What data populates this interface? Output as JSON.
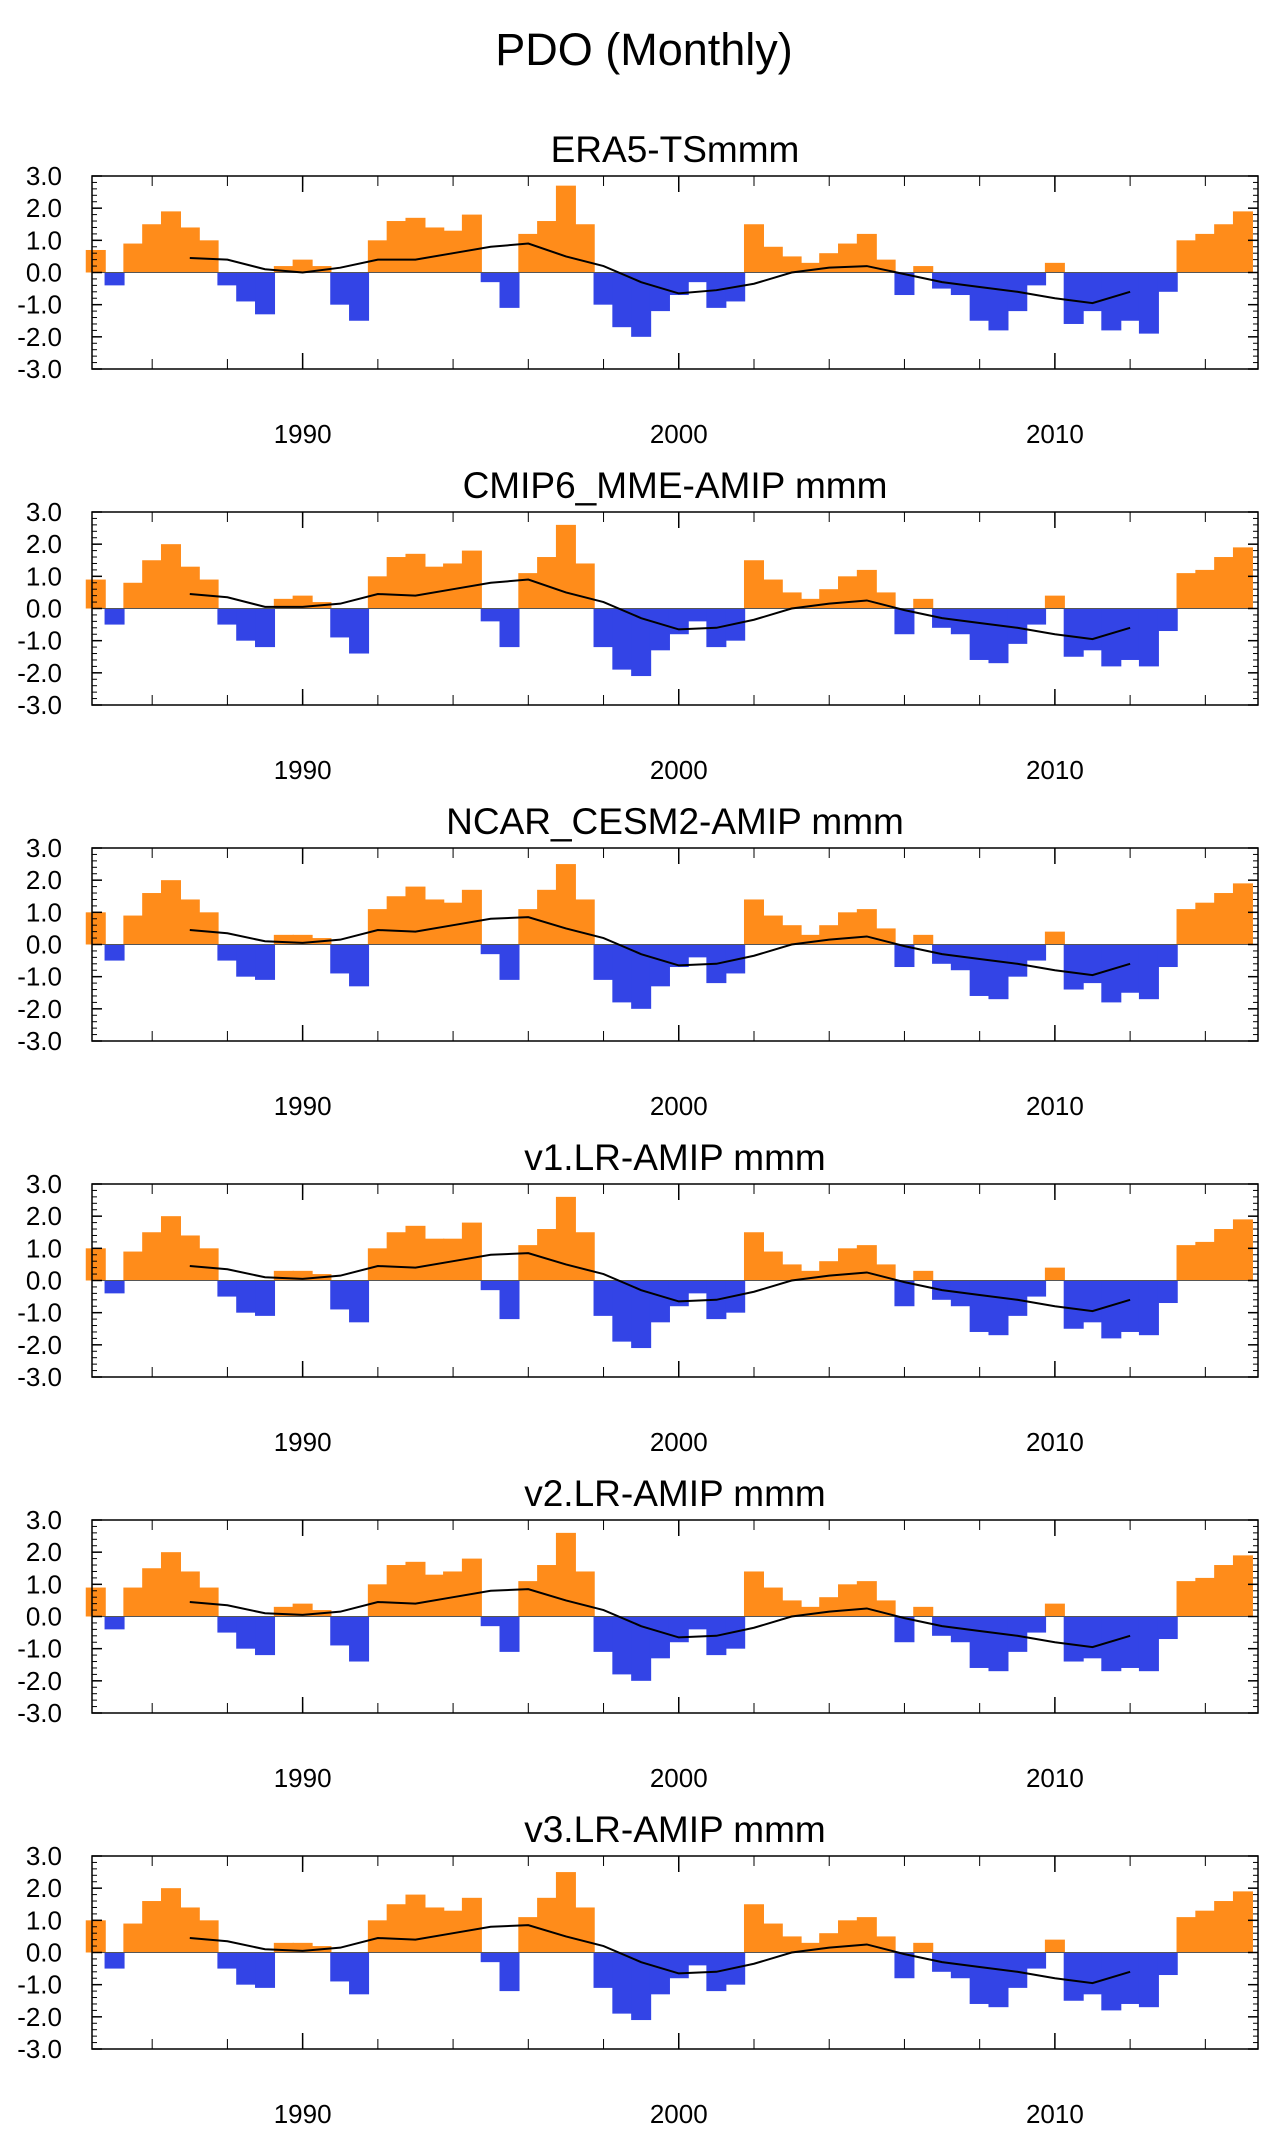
{
  "title": "PDO (Monthly)",
  "colors": {
    "positive": "#ff8c1a",
    "negative": "#3344e6",
    "smooth_line": "#000000",
    "frame": "#000000"
  },
  "chart_data": [
    {
      "type": "area",
      "title": "ERA5-TSmmm",
      "x_range": [
        1984.4,
        2015.4
      ],
      "ylim": [
        -3.0,
        3.0
      ],
      "y_ticks": [
        "3.0",
        "2.0",
        "1.0",
        "0.0",
        "-1.0",
        "-2.0",
        "-3.0"
      ],
      "x_ticks": [
        "1990",
        "2000",
        "2010"
      ],
      "grid": false,
      "x": [
        1984.5,
        1985.0,
        1985.5,
        1986.0,
        1986.5,
        1987.0,
        1987.5,
        1988.0,
        1988.5,
        1989.0,
        1989.5,
        1990.0,
        1990.5,
        1991.0,
        1991.5,
        1992.0,
        1992.5,
        1993.0,
        1993.5,
        1994.0,
        1994.5,
        1995.0,
        1995.5,
        1996.0,
        1996.5,
        1997.0,
        1997.5,
        1998.0,
        1998.5,
        1999.0,
        1999.5,
        2000.0,
        2000.5,
        2001.0,
        2001.5,
        2002.0,
        2002.5,
        2003.0,
        2003.5,
        2004.0,
        2004.5,
        2005.0,
        2005.5,
        2006.0,
        2006.5,
        2007.0,
        2007.5,
        2008.0,
        2008.5,
        2009.0,
        2009.5,
        2010.0,
        2010.5,
        2011.0,
        2011.5,
        2012.0,
        2012.5,
        2013.0,
        2013.5,
        2014.0,
        2014.5,
        2015.0
      ],
      "values": [
        0.7,
        -0.4,
        0.9,
        1.5,
        1.9,
        1.4,
        1.0,
        -0.4,
        -0.9,
        -1.3,
        0.2,
        0.4,
        0.2,
        -1.0,
        -1.5,
        1.0,
        1.6,
        1.7,
        1.4,
        1.3,
        1.8,
        -0.3,
        -1.1,
        1.2,
        1.6,
        2.7,
        1.5,
        -1.0,
        -1.7,
        -2.0,
        -1.2,
        -0.7,
        -0.3,
        -1.1,
        -0.9,
        1.5,
        0.8,
        0.5,
        0.3,
        0.6,
        0.9,
        1.2,
        0.4,
        -0.7,
        0.2,
        -0.5,
        -0.7,
        -1.5,
        -1.8,
        -1.2,
        -0.4,
        0.3,
        -1.6,
        -1.2,
        -1.8,
        -1.5,
        -1.9,
        -0.6,
        1.0,
        1.2,
        1.5,
        1.9
      ],
      "smooth_x": [
        1987.0,
        1988.0,
        1989.0,
        1990.0,
        1991.0,
        1992.0,
        1993.0,
        1994.0,
        1995.0,
        1996.0,
        1997.0,
        1998.0,
        1999.0,
        2000.0,
        2001.0,
        2002.0,
        2003.0,
        2004.0,
        2005.0,
        2006.0,
        2007.0,
        2008.0,
        2009.0,
        2010.0,
        2011.0,
        2012.0
      ],
      "smooth": [
        0.45,
        0.4,
        0.1,
        0.0,
        0.15,
        0.4,
        0.4,
        0.6,
        0.8,
        0.9,
        0.5,
        0.2,
        -0.3,
        -0.65,
        -0.55,
        -0.35,
        0.0,
        0.15,
        0.2,
        -0.05,
        -0.3,
        -0.45,
        -0.6,
        -0.8,
        -0.95,
        -0.6
      ]
    },
    {
      "type": "area",
      "title": "CMIP6_MME-AMIP  mmm",
      "x_range": [
        1984.4,
        2015.4
      ],
      "ylim": [
        -3.0,
        3.0
      ],
      "y_ticks": [
        "3.0",
        "2.0",
        "1.0",
        "0.0",
        "-1.0",
        "-2.0",
        "-3.0"
      ],
      "x_ticks": [
        "1990",
        "2000",
        "2010"
      ],
      "grid": false,
      "x": [
        1984.5,
        1985.0,
        1985.5,
        1986.0,
        1986.5,
        1987.0,
        1987.5,
        1988.0,
        1988.5,
        1989.0,
        1989.5,
        1990.0,
        1990.5,
        1991.0,
        1991.5,
        1992.0,
        1992.5,
        1993.0,
        1993.5,
        1994.0,
        1994.5,
        1995.0,
        1995.5,
        1996.0,
        1996.5,
        1997.0,
        1997.5,
        1998.0,
        1998.5,
        1999.0,
        1999.5,
        2000.0,
        2000.5,
        2001.0,
        2001.5,
        2002.0,
        2002.5,
        2003.0,
        2003.5,
        2004.0,
        2004.5,
        2005.0,
        2005.5,
        2006.0,
        2006.5,
        2007.0,
        2007.5,
        2008.0,
        2008.5,
        2009.0,
        2009.5,
        2010.0,
        2010.5,
        2011.0,
        2011.5,
        2012.0,
        2012.5,
        2013.0,
        2013.5,
        2014.0,
        2014.5,
        2015.0
      ],
      "values": [
        0.9,
        -0.5,
        0.8,
        1.5,
        2.0,
        1.3,
        0.9,
        -0.5,
        -1.0,
        -1.2,
        0.3,
        0.4,
        0.2,
        -0.9,
        -1.4,
        1.0,
        1.6,
        1.7,
        1.3,
        1.4,
        1.8,
        -0.4,
        -1.2,
        1.1,
        1.6,
        2.6,
        1.4,
        -1.2,
        -1.9,
        -2.1,
        -1.3,
        -0.8,
        -0.4,
        -1.2,
        -1.0,
        1.5,
        0.9,
        0.5,
        0.3,
        0.6,
        1.0,
        1.2,
        0.5,
        -0.8,
        0.3,
        -0.6,
        -0.8,
        -1.6,
        -1.7,
        -1.1,
        -0.5,
        0.4,
        -1.5,
        -1.3,
        -1.8,
        -1.6,
        -1.8,
        -0.7,
        1.1,
        1.2,
        1.6,
        1.9
      ],
      "smooth_x": [
        1987.0,
        1988.0,
        1989.0,
        1990.0,
        1991.0,
        1992.0,
        1993.0,
        1994.0,
        1995.0,
        1996.0,
        1997.0,
        1998.0,
        1999.0,
        2000.0,
        2001.0,
        2002.0,
        2003.0,
        2004.0,
        2005.0,
        2006.0,
        2007.0,
        2008.0,
        2009.0,
        2010.0,
        2011.0,
        2012.0
      ],
      "smooth": [
        0.45,
        0.35,
        0.05,
        0.05,
        0.15,
        0.45,
        0.4,
        0.6,
        0.8,
        0.9,
        0.5,
        0.2,
        -0.3,
        -0.65,
        -0.6,
        -0.35,
        0.0,
        0.15,
        0.25,
        -0.05,
        -0.3,
        -0.45,
        -0.6,
        -0.8,
        -0.95,
        -0.6
      ]
    },
    {
      "type": "area",
      "title": "NCAR_CESM2-AMIP  mmm",
      "x_range": [
        1984.4,
        2015.4
      ],
      "ylim": [
        -3.0,
        3.0
      ],
      "y_ticks": [
        "3.0",
        "2.0",
        "1.0",
        "0.0",
        "-1.0",
        "-2.0",
        "-3.0"
      ],
      "x_ticks": [
        "1990",
        "2000",
        "2010"
      ],
      "grid": false,
      "x": [
        1984.5,
        1985.0,
        1985.5,
        1986.0,
        1986.5,
        1987.0,
        1987.5,
        1988.0,
        1988.5,
        1989.0,
        1989.5,
        1990.0,
        1990.5,
        1991.0,
        1991.5,
        1992.0,
        1992.5,
        1993.0,
        1993.5,
        1994.0,
        1994.5,
        1995.0,
        1995.5,
        1996.0,
        1996.5,
        1997.0,
        1997.5,
        1998.0,
        1998.5,
        1999.0,
        1999.5,
        2000.0,
        2000.5,
        2001.0,
        2001.5,
        2002.0,
        2002.5,
        2003.0,
        2003.5,
        2004.0,
        2004.5,
        2005.0,
        2005.5,
        2006.0,
        2006.5,
        2007.0,
        2007.5,
        2008.0,
        2008.5,
        2009.0,
        2009.5,
        2010.0,
        2010.5,
        2011.0,
        2011.5,
        2012.0,
        2012.5,
        2013.0,
        2013.5,
        2014.0,
        2014.5,
        2015.0
      ],
      "values": [
        1.0,
        -0.5,
        0.9,
        1.6,
        2.0,
        1.4,
        1.0,
        -0.5,
        -1.0,
        -1.1,
        0.3,
        0.3,
        0.2,
        -0.9,
        -1.3,
        1.1,
        1.5,
        1.8,
        1.4,
        1.3,
        1.7,
        -0.3,
        -1.1,
        1.1,
        1.7,
        2.5,
        1.4,
        -1.1,
        -1.8,
        -2.0,
        -1.3,
        -0.7,
        -0.4,
        -1.2,
        -0.9,
        1.4,
        0.9,
        0.6,
        0.3,
        0.6,
        1.0,
        1.1,
        0.5,
        -0.7,
        0.3,
        -0.6,
        -0.8,
        -1.6,
        -1.7,
        -1.0,
        -0.5,
        0.4,
        -1.4,
        -1.2,
        -1.8,
        -1.5,
        -1.7,
        -0.7,
        1.1,
        1.3,
        1.6,
        1.9
      ],
      "smooth_x": [
        1987.0,
        1988.0,
        1989.0,
        1990.0,
        1991.0,
        1992.0,
        1993.0,
        1994.0,
        1995.0,
        1996.0,
        1997.0,
        1998.0,
        1999.0,
        2000.0,
        2001.0,
        2002.0,
        2003.0,
        2004.0,
        2005.0,
        2006.0,
        2007.0,
        2008.0,
        2009.0,
        2010.0,
        2011.0,
        2012.0
      ],
      "smooth": [
        0.45,
        0.35,
        0.1,
        0.05,
        0.15,
        0.45,
        0.4,
        0.6,
        0.8,
        0.85,
        0.5,
        0.2,
        -0.3,
        -0.65,
        -0.6,
        -0.35,
        0.0,
        0.15,
        0.25,
        -0.05,
        -0.3,
        -0.45,
        -0.6,
        -0.8,
        -0.95,
        -0.6
      ]
    },
    {
      "type": "area",
      "title": "v1.LR-AMIP  mmm",
      "x_range": [
        1984.4,
        2015.4
      ],
      "ylim": [
        -3.0,
        3.0
      ],
      "y_ticks": [
        "3.0",
        "2.0",
        "1.0",
        "0.0",
        "-1.0",
        "-2.0",
        "-3.0"
      ],
      "x_ticks": [
        "1990",
        "2000",
        "2010"
      ],
      "grid": false,
      "x": [
        1984.5,
        1985.0,
        1985.5,
        1986.0,
        1986.5,
        1987.0,
        1987.5,
        1988.0,
        1988.5,
        1989.0,
        1989.5,
        1990.0,
        1990.5,
        1991.0,
        1991.5,
        1992.0,
        1992.5,
        1993.0,
        1993.5,
        1994.0,
        1994.5,
        1995.0,
        1995.5,
        1996.0,
        1996.5,
        1997.0,
        1997.5,
        1998.0,
        1998.5,
        1999.0,
        1999.5,
        2000.0,
        2000.5,
        2001.0,
        2001.5,
        2002.0,
        2002.5,
        2003.0,
        2003.5,
        2004.0,
        2004.5,
        2005.0,
        2005.5,
        2006.0,
        2006.5,
        2007.0,
        2007.5,
        2008.0,
        2008.5,
        2009.0,
        2009.5,
        2010.0,
        2010.5,
        2011.0,
        2011.5,
        2012.0,
        2012.5,
        2013.0,
        2013.5,
        2014.0,
        2014.5,
        2015.0
      ],
      "values": [
        1.0,
        -0.4,
        0.9,
        1.5,
        2.0,
        1.4,
        1.0,
        -0.5,
        -1.0,
        -1.1,
        0.3,
        0.3,
        0.2,
        -0.9,
        -1.3,
        1.0,
        1.5,
        1.7,
        1.3,
        1.3,
        1.8,
        -0.3,
        -1.2,
        1.1,
        1.6,
        2.6,
        1.5,
        -1.1,
        -1.9,
        -2.1,
        -1.3,
        -0.8,
        -0.4,
        -1.2,
        -1.0,
        1.5,
        0.9,
        0.5,
        0.3,
        0.6,
        1.0,
        1.1,
        0.5,
        -0.8,
        0.3,
        -0.6,
        -0.8,
        -1.6,
        -1.7,
        -1.1,
        -0.5,
        0.4,
        -1.5,
        -1.3,
        -1.8,
        -1.6,
        -1.7,
        -0.7,
        1.1,
        1.2,
        1.6,
        1.9
      ],
      "smooth_x": [
        1987.0,
        1988.0,
        1989.0,
        1990.0,
        1991.0,
        1992.0,
        1993.0,
        1994.0,
        1995.0,
        1996.0,
        1997.0,
        1998.0,
        1999.0,
        2000.0,
        2001.0,
        2002.0,
        2003.0,
        2004.0,
        2005.0,
        2006.0,
        2007.0,
        2008.0,
        2009.0,
        2010.0,
        2011.0,
        2012.0
      ],
      "smooth": [
        0.45,
        0.35,
        0.1,
        0.05,
        0.15,
        0.45,
        0.4,
        0.6,
        0.8,
        0.85,
        0.5,
        0.2,
        -0.3,
        -0.65,
        -0.6,
        -0.35,
        0.0,
        0.15,
        0.25,
        -0.05,
        -0.3,
        -0.45,
        -0.6,
        -0.8,
        -0.95,
        -0.6
      ]
    },
    {
      "type": "area",
      "title": "v2.LR-AMIP  mmm",
      "x_range": [
        1984.4,
        2015.4
      ],
      "ylim": [
        -3.0,
        3.0
      ],
      "y_ticks": [
        "3.0",
        "2.0",
        "1.0",
        "0.0",
        "-1.0",
        "-2.0",
        "-3.0"
      ],
      "x_ticks": [
        "1990",
        "2000",
        "2010"
      ],
      "grid": false,
      "x": [
        1984.5,
        1985.0,
        1985.5,
        1986.0,
        1986.5,
        1987.0,
        1987.5,
        1988.0,
        1988.5,
        1989.0,
        1989.5,
        1990.0,
        1990.5,
        1991.0,
        1991.5,
        1992.0,
        1992.5,
        1993.0,
        1993.5,
        1994.0,
        1994.5,
        1995.0,
        1995.5,
        1996.0,
        1996.5,
        1997.0,
        1997.5,
        1998.0,
        1998.5,
        1999.0,
        1999.5,
        2000.0,
        2000.5,
        2001.0,
        2001.5,
        2002.0,
        2002.5,
        2003.0,
        2003.5,
        2004.0,
        2004.5,
        2005.0,
        2005.5,
        2006.0,
        2006.5,
        2007.0,
        2007.5,
        2008.0,
        2008.5,
        2009.0,
        2009.5,
        2010.0,
        2010.5,
        2011.0,
        2011.5,
        2012.0,
        2012.5,
        2013.0,
        2013.5,
        2014.0,
        2014.5,
        2015.0
      ],
      "values": [
        0.9,
        -0.4,
        0.9,
        1.5,
        2.0,
        1.4,
        0.9,
        -0.5,
        -1.0,
        -1.2,
        0.3,
        0.4,
        0.2,
        -0.9,
        -1.4,
        1.0,
        1.6,
        1.7,
        1.3,
        1.4,
        1.8,
        -0.3,
        -1.1,
        1.1,
        1.6,
        2.6,
        1.4,
        -1.1,
        -1.8,
        -2.0,
        -1.3,
        -0.8,
        -0.4,
        -1.2,
        -1.0,
        1.4,
        0.9,
        0.5,
        0.3,
        0.6,
        1.0,
        1.1,
        0.5,
        -0.8,
        0.3,
        -0.6,
        -0.8,
        -1.6,
        -1.7,
        -1.1,
        -0.5,
        0.4,
        -1.4,
        -1.3,
        -1.7,
        -1.6,
        -1.7,
        -0.7,
        1.1,
        1.2,
        1.6,
        1.9
      ],
      "smooth_x": [
        1987.0,
        1988.0,
        1989.0,
        1990.0,
        1991.0,
        1992.0,
        1993.0,
        1994.0,
        1995.0,
        1996.0,
        1997.0,
        1998.0,
        1999.0,
        2000.0,
        2001.0,
        2002.0,
        2003.0,
        2004.0,
        2005.0,
        2006.0,
        2007.0,
        2008.0,
        2009.0,
        2010.0,
        2011.0,
        2012.0
      ],
      "smooth": [
        0.45,
        0.35,
        0.1,
        0.05,
        0.15,
        0.45,
        0.4,
        0.6,
        0.8,
        0.85,
        0.5,
        0.2,
        -0.3,
        -0.65,
        -0.6,
        -0.35,
        0.0,
        0.15,
        0.25,
        -0.05,
        -0.3,
        -0.45,
        -0.6,
        -0.8,
        -0.95,
        -0.6
      ]
    },
    {
      "type": "area",
      "title": "v3.LR-AMIP  mmm",
      "x_range": [
        1984.4,
        2015.4
      ],
      "ylim": [
        -3.0,
        3.0
      ],
      "y_ticks": [
        "3.0",
        "2.0",
        "1.0",
        "0.0",
        "-1.0",
        "-2.0",
        "-3.0"
      ],
      "x_ticks": [
        "1990",
        "2000",
        "2010"
      ],
      "grid": false,
      "x": [
        1984.5,
        1985.0,
        1985.5,
        1986.0,
        1986.5,
        1987.0,
        1987.5,
        1988.0,
        1988.5,
        1989.0,
        1989.5,
        1990.0,
        1990.5,
        1991.0,
        1991.5,
        1992.0,
        1992.5,
        1993.0,
        1993.5,
        1994.0,
        1994.5,
        1995.0,
        1995.5,
        1996.0,
        1996.5,
        1997.0,
        1997.5,
        1998.0,
        1998.5,
        1999.0,
        1999.5,
        2000.0,
        2000.5,
        2001.0,
        2001.5,
        2002.0,
        2002.5,
        2003.0,
        2003.5,
        2004.0,
        2004.5,
        2005.0,
        2005.5,
        2006.0,
        2006.5,
        2007.0,
        2007.5,
        2008.0,
        2008.5,
        2009.0,
        2009.5,
        2010.0,
        2010.5,
        2011.0,
        2011.5,
        2012.0,
        2012.5,
        2013.0,
        2013.5,
        2014.0,
        2014.5,
        2015.0
      ],
      "values": [
        1.0,
        -0.5,
        0.9,
        1.6,
        2.0,
        1.4,
        1.0,
        -0.5,
        -1.0,
        -1.1,
        0.3,
        0.3,
        0.2,
        -0.9,
        -1.3,
        1.0,
        1.5,
        1.8,
        1.4,
        1.3,
        1.7,
        -0.3,
        -1.2,
        1.1,
        1.7,
        2.5,
        1.4,
        -1.1,
        -1.9,
        -2.1,
        -1.3,
        -0.8,
        -0.4,
        -1.2,
        -1.0,
        1.5,
        0.9,
        0.5,
        0.3,
        0.6,
        1.0,
        1.1,
        0.5,
        -0.8,
        0.3,
        -0.6,
        -0.8,
        -1.6,
        -1.7,
        -1.1,
        -0.5,
        0.4,
        -1.5,
        -1.3,
        -1.8,
        -1.6,
        -1.7,
        -0.7,
        1.1,
        1.3,
        1.6,
        1.9
      ],
      "smooth_x": [
        1987.0,
        1988.0,
        1989.0,
        1990.0,
        1991.0,
        1992.0,
        1993.0,
        1994.0,
        1995.0,
        1996.0,
        1997.0,
        1998.0,
        1999.0,
        2000.0,
        2001.0,
        2002.0,
        2003.0,
        2004.0,
        2005.0,
        2006.0,
        2007.0,
        2008.0,
        2009.0,
        2010.0,
        2011.0,
        2012.0
      ],
      "smooth": [
        0.45,
        0.35,
        0.1,
        0.05,
        0.15,
        0.45,
        0.4,
        0.6,
        0.8,
        0.85,
        0.5,
        0.2,
        -0.3,
        -0.65,
        -0.6,
        -0.35,
        0.0,
        0.15,
        0.25,
        -0.05,
        -0.3,
        -0.45,
        -0.6,
        -0.8,
        -0.95,
        -0.6
      ]
    }
  ]
}
